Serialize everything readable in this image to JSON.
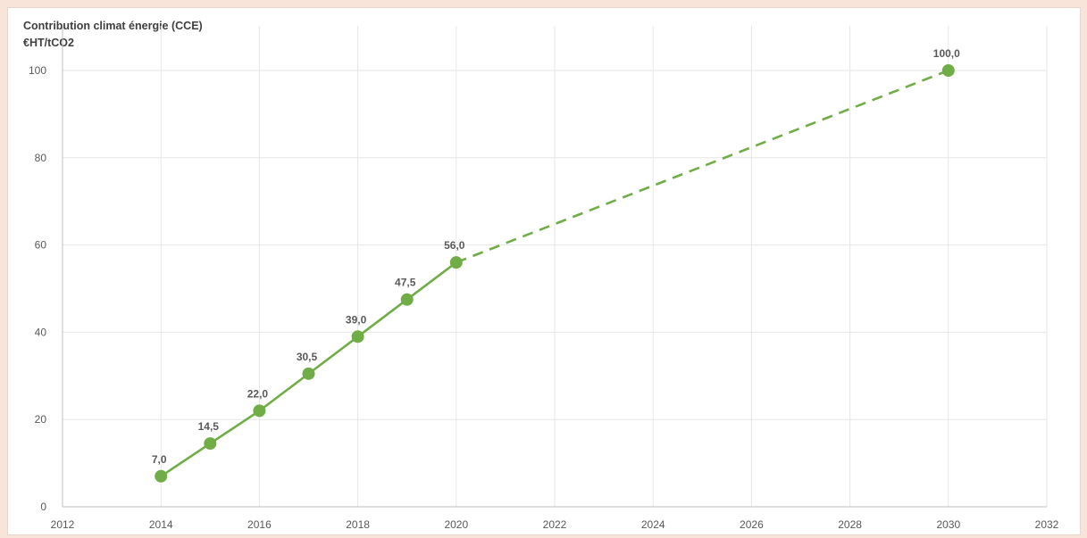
{
  "chart_data": {
    "type": "line",
    "title_line1": "Contribution climat énergie (CCE)",
    "title_line2": "€HT/tCO2",
    "xlim": [
      2012,
      2032
    ],
    "ylim": [
      0,
      100
    ],
    "x_ticks": [
      2012,
      2014,
      2016,
      2018,
      2020,
      2022,
      2024,
      2026,
      2028,
      2030,
      2032
    ],
    "y_ticks": [
      0,
      20,
      40,
      60,
      80,
      100
    ],
    "grid": true,
    "series": [
      {
        "style": "solid",
        "x": [
          2014,
          2015,
          2016,
          2017,
          2018,
          2019,
          2020
        ],
        "y": [
          7.0,
          14.5,
          22.0,
          30.5,
          39.0,
          47.5,
          56.0
        ]
      },
      {
        "style": "dashed",
        "x": [
          2020,
          2030
        ],
        "y": [
          56.0,
          100.0
        ]
      }
    ],
    "data_labels": [
      {
        "x": 2014,
        "y": 7.0,
        "text": "7,0"
      },
      {
        "x": 2015,
        "y": 14.5,
        "text": "14,5"
      },
      {
        "x": 2016,
        "y": 22.0,
        "text": "22,0"
      },
      {
        "x": 2017,
        "y": 30.5,
        "text": "30,5"
      },
      {
        "x": 2018,
        "y": 39.0,
        "text": "39,0"
      },
      {
        "x": 2019,
        "y": 47.5,
        "text": "47,5"
      },
      {
        "x": 2020,
        "y": 56.0,
        "text": "56,0"
      },
      {
        "x": 2030,
        "y": 100.0,
        "text": "100,0"
      }
    ],
    "line_color": "#70ad47",
    "grid_color": "#e6e6e6",
    "axis_color": "#bfbfbf"
  }
}
